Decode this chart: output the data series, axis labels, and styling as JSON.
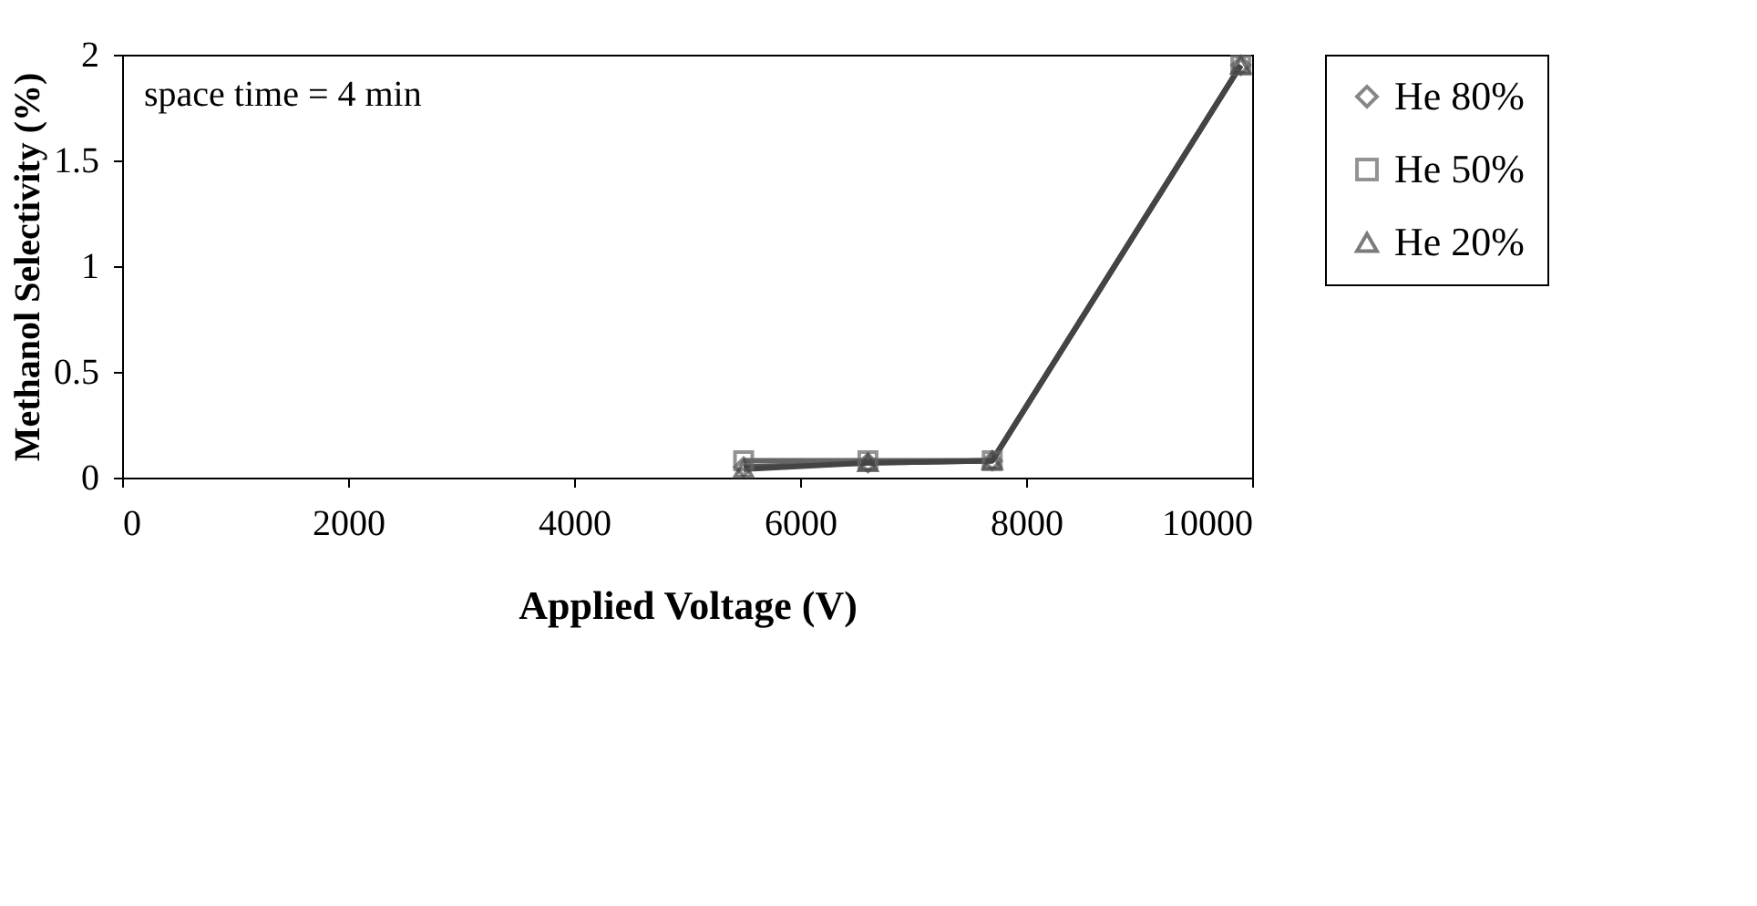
{
  "chart_data": {
    "type": "line",
    "xlabel": "Applied Voltage (V)",
    "ylabel": "Methanol Selectivity (%)",
    "annotations": [
      "space time = 4 min"
    ],
    "xlim": [
      0,
      10000
    ],
    "xticks": [
      0,
      2000,
      4000,
      6000,
      8000,
      10000
    ],
    "ylim": [
      0,
      2
    ],
    "yticks": [
      0,
      0.5,
      1,
      1.5,
      2
    ],
    "grid": false,
    "legend": "right",
    "x": [
      5500,
      6600,
      7700,
      9900
    ],
    "series": [
      {
        "name": "He 80%",
        "color": "#555555",
        "marker": "diamond",
        "values": [
          0.05,
          0.07,
          0.08,
          1.95
        ]
      },
      {
        "name": "He 50%",
        "color": "#666666",
        "marker": "square",
        "values": [
          0.08,
          0.08,
          0.08,
          1.95
        ]
      },
      {
        "name": "He 20%",
        "color": "#444444",
        "marker": "triangle",
        "values": [
          0.04,
          0.07,
          0.08,
          1.95
        ]
      }
    ]
  }
}
